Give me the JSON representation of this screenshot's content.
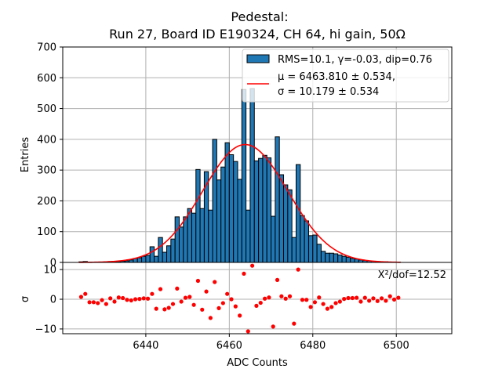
{
  "chart_data": {
    "type": "bar",
    "title_line1": "Pedestal:",
    "title_line2": "Run 27, Board ID E190324, CH 64, hi gain, 50Ω",
    "xlabel": "ADC Counts",
    "ylabel": "Entries",
    "residual_ylabel": "σ",
    "xlim": [
      6420.1,
      6513.3
    ],
    "ylim": [
      0,
      700
    ],
    "residual_ylim": [
      -11.6,
      12.4
    ],
    "grid": true,
    "x_ticks": [
      6440,
      6460,
      6480,
      6500
    ],
    "x_tick_labels": [
      "6440",
      "6460",
      "6480",
      "6500"
    ],
    "y_ticks": [
      0,
      100,
      200,
      300,
      400,
      500,
      600,
      700
    ],
    "y_tick_labels": [
      "0",
      "100",
      "200",
      "300",
      "400",
      "500",
      "600",
      "700"
    ],
    "residual_y_ticks": [
      -10,
      0,
      10
    ],
    "residual_y_tick_labels": [
      "−10",
      "0",
      "10"
    ],
    "bin_start": 6424,
    "bin_width": 1,
    "histogram_values": [
      2,
      3,
      1,
      1,
      1,
      1,
      2,
      3,
      2,
      3,
      4,
      5,
      8,
      13,
      15,
      20,
      23,
      51,
      20,
      81,
      33,
      54,
      76,
      148,
      115,
      148,
      175,
      160,
      302,
      175,
      295,
      170,
      400,
      268,
      310,
      389,
      350,
      328,
      270,
      562,
      170,
      565,
      330,
      338,
      348,
      340,
      150,
      408,
      285,
      252,
      236,
      81,
      318,
      152,
      135,
      87,
      89,
      59,
      36,
      30,
      30,
      28,
      24,
      20,
      17,
      13,
      11,
      8,
      6,
      5,
      4,
      3,
      2,
      2,
      1,
      1,
      1
    ],
    "fit": {
      "type": "gaussian",
      "amplitude": 383,
      "mu": 6463.81,
      "sigma": 10.179,
      "range": [
        6424,
        6501
      ]
    },
    "residuals": [
      0.8,
      1.8,
      -1.0,
      -1.0,
      -1.3,
      -0.3,
      -1.6,
      0.3,
      -0.8,
      0.6,
      0.4,
      -0.2,
      -0.4,
      0.0,
      0.1,
      0.3,
      0.2,
      1.8,
      -3.2,
      3.4,
      -3.4,
      -2.9,
      -1.6,
      3.6,
      -0.8,
      0.5,
      0.8,
      -1.9,
      6.2,
      -3.5,
      2.6,
      -6.3,
      5.8,
      -3.0,
      -1.3,
      1.8,
      0.0,
      -2.4,
      -5.5,
      8.6,
      -10.8,
      11.3,
      -2.2,
      -1.2,
      0.2,
      0.6,
      -9.2,
      6.5,
      1.0,
      0.2,
      1.0,
      -8.2,
      10.0,
      -0.2,
      -0.2,
      -2.6,
      -1.0,
      0.6,
      -1.6,
      -3.2,
      -2.6,
      -1.3,
      -0.8,
      0.1,
      0.4,
      0.4,
      0.5,
      -0.8,
      0.5,
      -0.5,
      0.3,
      -0.6,
      0.3,
      -0.5,
      1.0,
      -0.1,
      0.5
    ],
    "legend": {
      "position": "top-right",
      "entries": [
        {
          "label": "RMS=10.1, γ=-0.03, dip=0.76",
          "kind": "bar"
        },
        {
          "label_line1": "μ = 6463.810 ± 0.534,",
          "label_line2": "σ = 10.179 ± 0.534",
          "kind": "line"
        }
      ]
    },
    "annotation": "X²/dof=12.52",
    "colors": {
      "bar_fill": "#1f77b4",
      "bar_edge": "#000000",
      "fit_line": "#ff0000",
      "residual_marker": "#ff0000",
      "grid": "#b0b0b0"
    }
  }
}
